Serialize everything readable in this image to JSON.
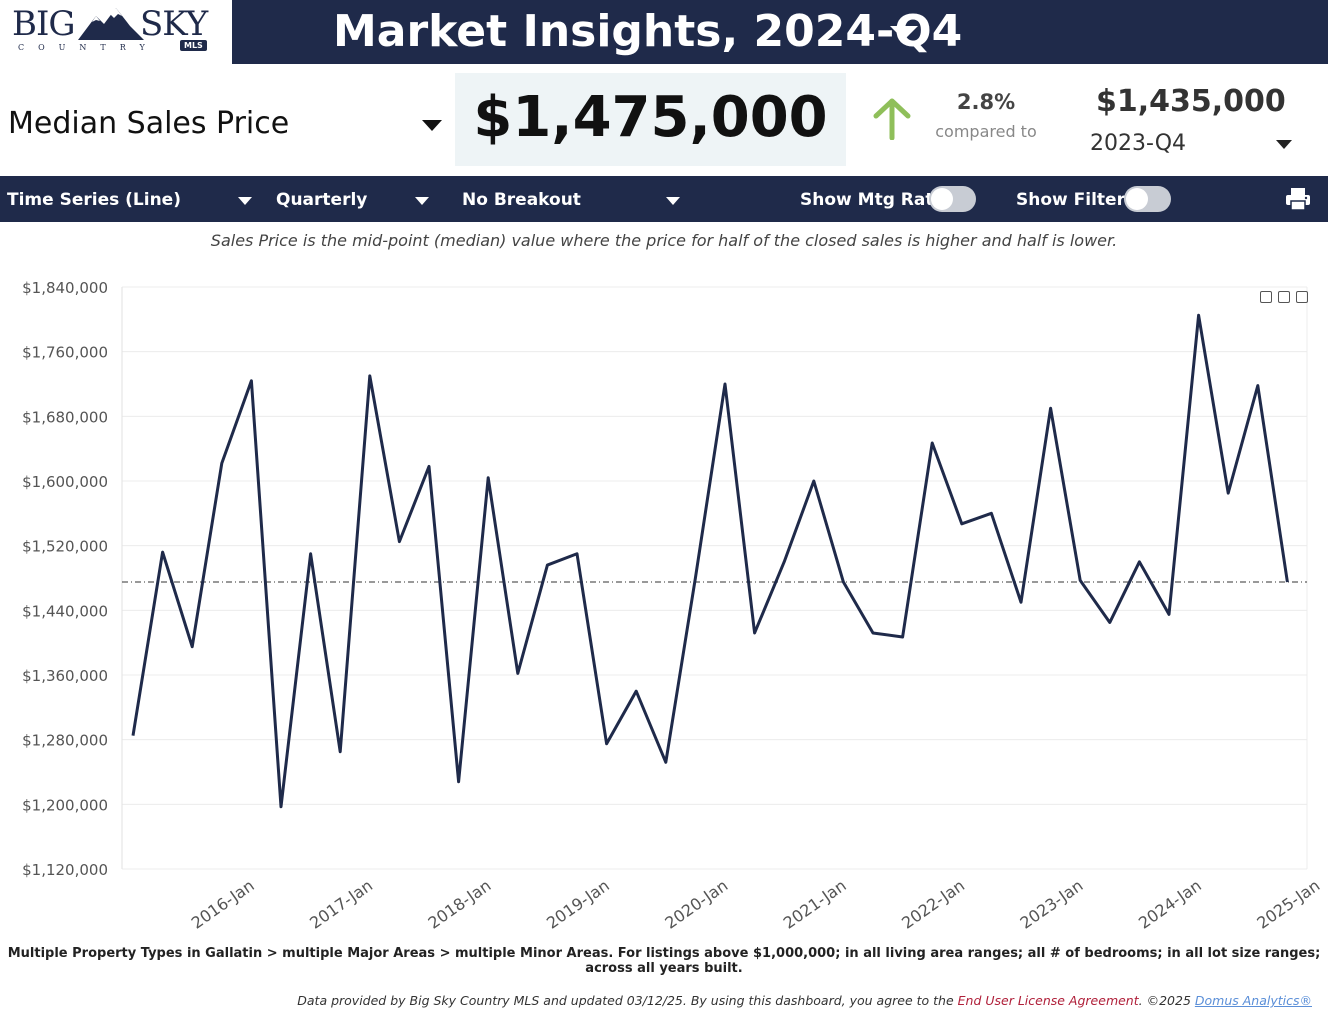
{
  "header": {
    "logo_text_big": "BIG",
    "logo_text_sky": "SKY",
    "logo_country": "COUNTRY",
    "logo_mls": "MLS",
    "title": "Market Insights, 2024-Q4"
  },
  "metric": {
    "name": "Median Sales Price",
    "value": "$1,475,000",
    "change_pct": "2.8%",
    "compared_label": "compared to",
    "compare_value": "$1,435,000",
    "compare_period": "2023-Q4",
    "change_direction": "up",
    "up_color": "#8fbf5a"
  },
  "toolbar": {
    "chart_type": "Time Series (Line)",
    "frequency": "Quarterly",
    "breakout": "No Breakout",
    "mtg_rate_label": "Show Mtg Rate:",
    "filters_label": "Show Filters:",
    "mtg_rate_on": false,
    "filters_on": false
  },
  "description": "Sales Price is the mid-point (median) value where the price for half of the closed sales is higher and half is lower.",
  "chart_data": {
    "type": "line",
    "y_ticks": [
      "$1,840,000",
      "$1,760,000",
      "$1,680,000",
      "$1,600,000",
      "$1,520,000",
      "$1,440,000",
      "$1,360,000",
      "$1,280,000",
      "$1,200,000",
      "$1,120,000"
    ],
    "x_ticks": [
      "2016-Jan",
      "2017-Jan",
      "2018-Jan",
      "2019-Jan",
      "2020-Jan",
      "2021-Jan",
      "2022-Jan",
      "2023-Jan",
      "2024-Jan",
      "2025-Jan"
    ],
    "ylim": [
      1120000,
      1840000
    ],
    "reference_line": 1475000,
    "line_color": "#1f2a4a",
    "points": [
      [
        "2015-Q1",
        1285000
      ],
      [
        "2015-Q2",
        1512000
      ],
      [
        "2015-Q3",
        1395000
      ],
      [
        "2015-Q4",
        1622000
      ],
      [
        "2016-Q1",
        1724000
      ],
      [
        "2016-Q2",
        1197000
      ],
      [
        "2016-Q3",
        1510000
      ],
      [
        "2016-Q4",
        1265000
      ],
      [
        "2017-Q1",
        1730000
      ],
      [
        "2017-Q2",
        1525000
      ],
      [
        "2017-Q3",
        1618000
      ],
      [
        "2017-Q4",
        1228000
      ],
      [
        "2018-Q1",
        1604000
      ],
      [
        "2018-Q2",
        1362000
      ],
      [
        "2018-Q3",
        1496000
      ],
      [
        "2018-Q4",
        1510000
      ],
      [
        "2019-Q1",
        1275000
      ],
      [
        "2019-Q2",
        1340000
      ],
      [
        "2019-Q3",
        1252000
      ],
      [
        "2019-Q4",
        1480000
      ],
      [
        "2020-Q1",
        1720000
      ],
      [
        "2020-Q2",
        1412000
      ],
      [
        "2020-Q3",
        1500000
      ],
      [
        "2020-Q4",
        1600000
      ],
      [
        "2021-Q1",
        1475000
      ],
      [
        "2021-Q2",
        1412000
      ],
      [
        "2021-Q3",
        1407000
      ],
      [
        "2021-Q4",
        1647000
      ],
      [
        "2022-Q1",
        1547000
      ],
      [
        "2022-Q2",
        1560000
      ],
      [
        "2022-Q3",
        1450000
      ],
      [
        "2022-Q4",
        1690000
      ],
      [
        "2023-Q1",
        1477000
      ],
      [
        "2023-Q2",
        1425000
      ],
      [
        "2023-Q3",
        1500000
      ],
      [
        "2023-Q4",
        1435000
      ],
      [
        "2024-Q1",
        1805000
      ],
      [
        "2024-Q2",
        1585000
      ],
      [
        "2024-Q3",
        1718000
      ],
      [
        "2024-Q4",
        1475000
      ]
    ]
  },
  "footnote": "Multiple Property Types in Gallatin > multiple Major Areas > multiple Minor Areas. For listings above $1,000,000; in all living area ranges; all # of bedrooms; in all lot size ranges; across all years built.",
  "footer": {
    "provided": "Data provided by Big Sky Country MLS and updated 03/12/25.  By using this dashboard, you agree to the ",
    "eula": "End User License Agreement",
    "copyright": ".  ©2025 ",
    "domus": "Domus Analytics®"
  }
}
